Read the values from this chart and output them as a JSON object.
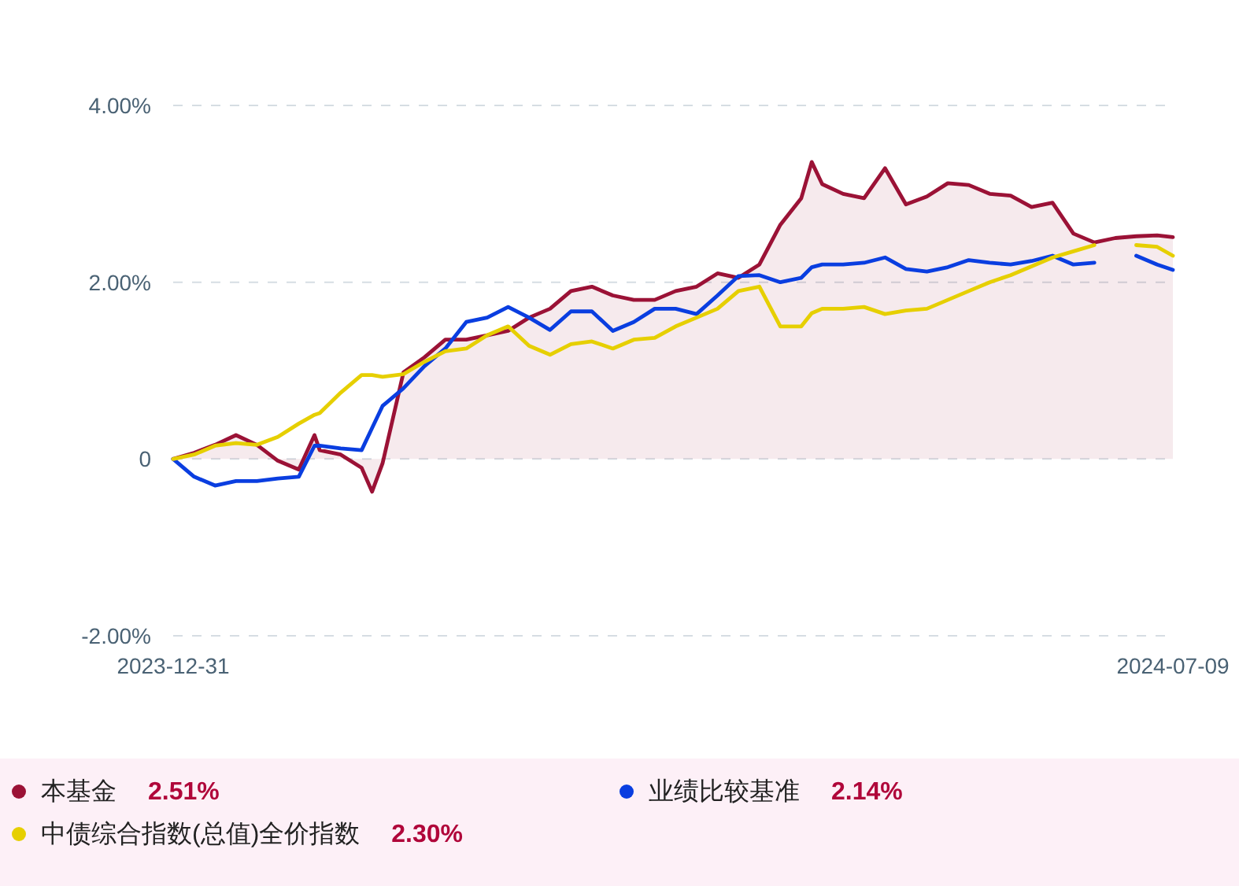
{
  "chart_data": {
    "type": "line",
    "x": [
      "2023-12-31",
      "2024-01-04",
      "2024-01-08",
      "2024-01-12",
      "2024-01-16",
      "2024-01-20",
      "2024-01-24",
      "2024-01-27",
      "2024-01-28",
      "2024-02-01",
      "2024-02-05",
      "2024-02-07",
      "2024-02-09",
      "2024-02-13",
      "2024-02-17",
      "2024-02-21",
      "2024-02-25",
      "2024-02-29",
      "2024-03-04",
      "2024-03-08",
      "2024-03-12",
      "2024-03-16",
      "2024-03-20",
      "2024-03-24",
      "2024-03-28",
      "2024-04-01",
      "2024-04-05",
      "2024-04-09",
      "2024-04-13",
      "2024-04-17",
      "2024-04-21",
      "2024-04-25",
      "2024-04-29",
      "2024-05-01",
      "2024-05-03",
      "2024-05-07",
      "2024-05-11",
      "2024-05-15",
      "2024-05-19",
      "2024-05-23",
      "2024-05-27",
      "2024-05-31",
      "2024-06-04",
      "2024-06-08",
      "2024-06-12",
      "2024-06-16",
      "2024-06-20",
      "2024-06-24",
      "2024-06-28",
      "2024-07-02",
      "2024-07-06",
      "2024-07-09"
    ],
    "series": [
      {
        "name": "本基金",
        "type": "area",
        "color": "#9b1236",
        "values": [
          0,
          0.07,
          0.16,
          0.27,
          0.16,
          -0.02,
          -0.12,
          0.27,
          0.1,
          0.05,
          -0.1,
          -0.37,
          -0.05,
          0.98,
          1.15,
          1.35,
          1.35,
          1.4,
          1.45,
          1.6,
          1.7,
          1.9,
          1.95,
          1.85,
          1.8,
          1.8,
          1.9,
          1.95,
          2.1,
          2.05,
          2.2,
          2.65,
          2.95,
          3.36,
          3.11,
          3.0,
          2.95,
          3.29,
          2.88,
          2.97,
          3.12,
          3.1,
          3.0,
          2.98,
          2.85,
          2.9,
          2.55,
          2.45,
          2.5,
          2.52,
          2.53,
          2.51
        ]
      },
      {
        "name": "业绩比较基准",
        "color": "#0a3ee0",
        "values": [
          0,
          -0.2,
          -0.3,
          -0.25,
          -0.25,
          -0.22,
          -0.2,
          0.15,
          0.15,
          0.12,
          0.1,
          0.35,
          0.6,
          0.8,
          1.05,
          1.25,
          1.55,
          1.6,
          1.72,
          1.6,
          1.46,
          1.67,
          1.67,
          1.45,
          1.55,
          1.7,
          1.7,
          1.64,
          1.85,
          2.07,
          2.08,
          2.0,
          2.05,
          2.17,
          2.2,
          2.2,
          2.22,
          2.28,
          2.15,
          2.12,
          2.17,
          2.25,
          2.22,
          2.2,
          2.24,
          2.3,
          2.2,
          2.22,
          null,
          2.3,
          2.2,
          2.14
        ]
      },
      {
        "name": "中债综合指数(总值)全价指数",
        "color": "#e6cf00",
        "values": [
          0,
          0.05,
          0.15,
          0.18,
          0.16,
          0.25,
          0.4,
          0.5,
          0.52,
          0.75,
          0.95,
          0.95,
          0.93,
          0.96,
          1.1,
          1.22,
          1.25,
          1.4,
          1.5,
          1.28,
          1.18,
          1.3,
          1.33,
          1.25,
          1.35,
          1.37,
          1.5,
          1.6,
          1.7,
          1.9,
          1.95,
          1.5,
          1.5,
          1.65,
          1.7,
          1.7,
          1.72,
          1.64,
          1.68,
          1.7,
          1.8,
          1.9,
          2.0,
          2.08,
          2.18,
          2.28,
          2.35,
          2.42,
          null,
          2.42,
          2.4,
          2.3
        ]
      }
    ],
    "ylim": [
      -2,
      4
    ],
    "yticks": [
      {
        "value": -2,
        "label": "-2.00%"
      },
      0,
      {
        "value": 2,
        "label": "2.00%"
      },
      {
        "value": 4,
        "label": "4.00%"
      }
    ],
    "xlim": [
      "2023-12-31",
      "2024-07-09"
    ],
    "xticks": [
      "2023-12-31",
      "2024-07-09"
    ],
    "grid": "y",
    "legend": "bottom",
    "annotations": [
      "2.51%",
      "2.14%",
      "2.30%"
    ]
  }
}
